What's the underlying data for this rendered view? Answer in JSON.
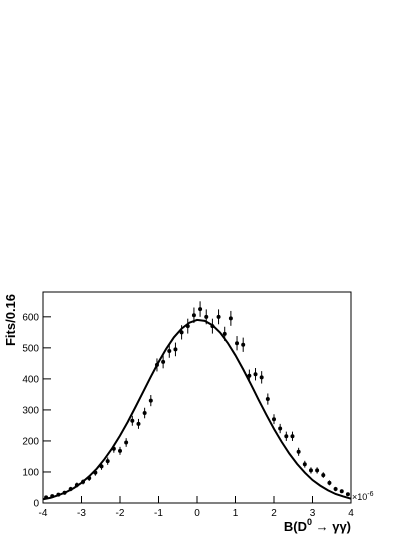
{
  "chart_data": {
    "type": "errorbar",
    "ylabel": "Fits/0.16",
    "xlabel": {
      "text": "B(D",
      "superscript": "0",
      "tail": " → γγ)"
    },
    "x_multiplier": {
      "base": "×10",
      "exponent": "-6"
    },
    "xlim": [
      -4,
      4
    ],
    "xticks": [
      -4,
      -3,
      -2,
      -1,
      0,
      1,
      2,
      3,
      4
    ],
    "ylim": [
      0,
      680
    ],
    "yticks": [
      0,
      100,
      200,
      300,
      400,
      500,
      600
    ],
    "color": "#000000",
    "points": {
      "x": [
        -3.92,
        -3.76,
        -3.6,
        -3.44,
        -3.28,
        -3.12,
        -2.96,
        -2.8,
        -2.64,
        -2.48,
        -2.32,
        -2.16,
        -2,
        -1.84,
        -1.68,
        -1.52,
        -1.36,
        -1.2,
        -1.04,
        -0.88,
        -0.72,
        -0.56,
        -0.4,
        -0.24,
        -0.08,
        0.08,
        0.24,
        0.4,
        0.56,
        0.72,
        0.88,
        1.04,
        1.2,
        1.36,
        1.52,
        1.68,
        1.84,
        2,
        2.16,
        2.32,
        2.48,
        2.64,
        2.8,
        2.96,
        3.12,
        3.28,
        3.44,
        3.6,
        3.76,
        3.92
      ],
      "values": [
        18,
        22,
        27,
        33,
        45,
        58,
        68,
        80,
        98,
        118,
        135,
        175,
        168,
        195,
        265,
        255,
        290,
        330,
        445,
        455,
        490,
        495,
        550,
        570,
        605,
        625,
        600,
        570,
        600,
        545,
        595,
        515,
        510,
        410,
        415,
        405,
        335,
        270,
        240,
        215,
        215,
        165,
        125,
        105,
        105,
        90,
        65,
        45,
        38,
        28
      ],
      "errors": [
        4,
        5,
        5,
        6,
        7,
        8,
        8,
        9,
        10,
        11,
        12,
        13,
        13,
        14,
        16,
        16,
        17,
        18,
        21,
        21,
        22,
        22,
        23,
        24,
        25,
        25,
        24,
        24,
        24,
        23,
        24,
        23,
        23,
        20,
        20,
        20,
        18,
        16,
        15,
        15,
        15,
        13,
        11,
        10,
        10,
        9,
        8,
        7,
        6,
        5
      ]
    },
    "fit": {
      "x": [
        -4,
        -3.8,
        -3.6,
        -3.4,
        -3.2,
        -3,
        -2.8,
        -2.6,
        -2.4,
        -2.2,
        -2,
        -1.8,
        -1.6,
        -1.4,
        -1.2,
        -1,
        -0.8,
        -0.6,
        -0.4,
        -0.2,
        0,
        0.2,
        0.4,
        0.6,
        0.8,
        1,
        1.2,
        1.4,
        1.6,
        1.8,
        2,
        2.2,
        2.4,
        2.6,
        2.8,
        3,
        3.2,
        3.4,
        3.6,
        3.8,
        4
      ],
      "values": [
        12,
        17,
        25,
        35,
        48,
        65,
        86,
        111,
        142,
        177,
        217,
        261,
        309,
        358,
        407,
        454,
        497,
        534,
        562,
        581,
        590,
        587,
        573,
        549,
        516,
        476,
        431,
        383,
        333,
        285,
        239,
        197,
        159,
        126,
        98,
        74,
        56,
        41,
        29,
        21,
        14
      ]
    }
  }
}
